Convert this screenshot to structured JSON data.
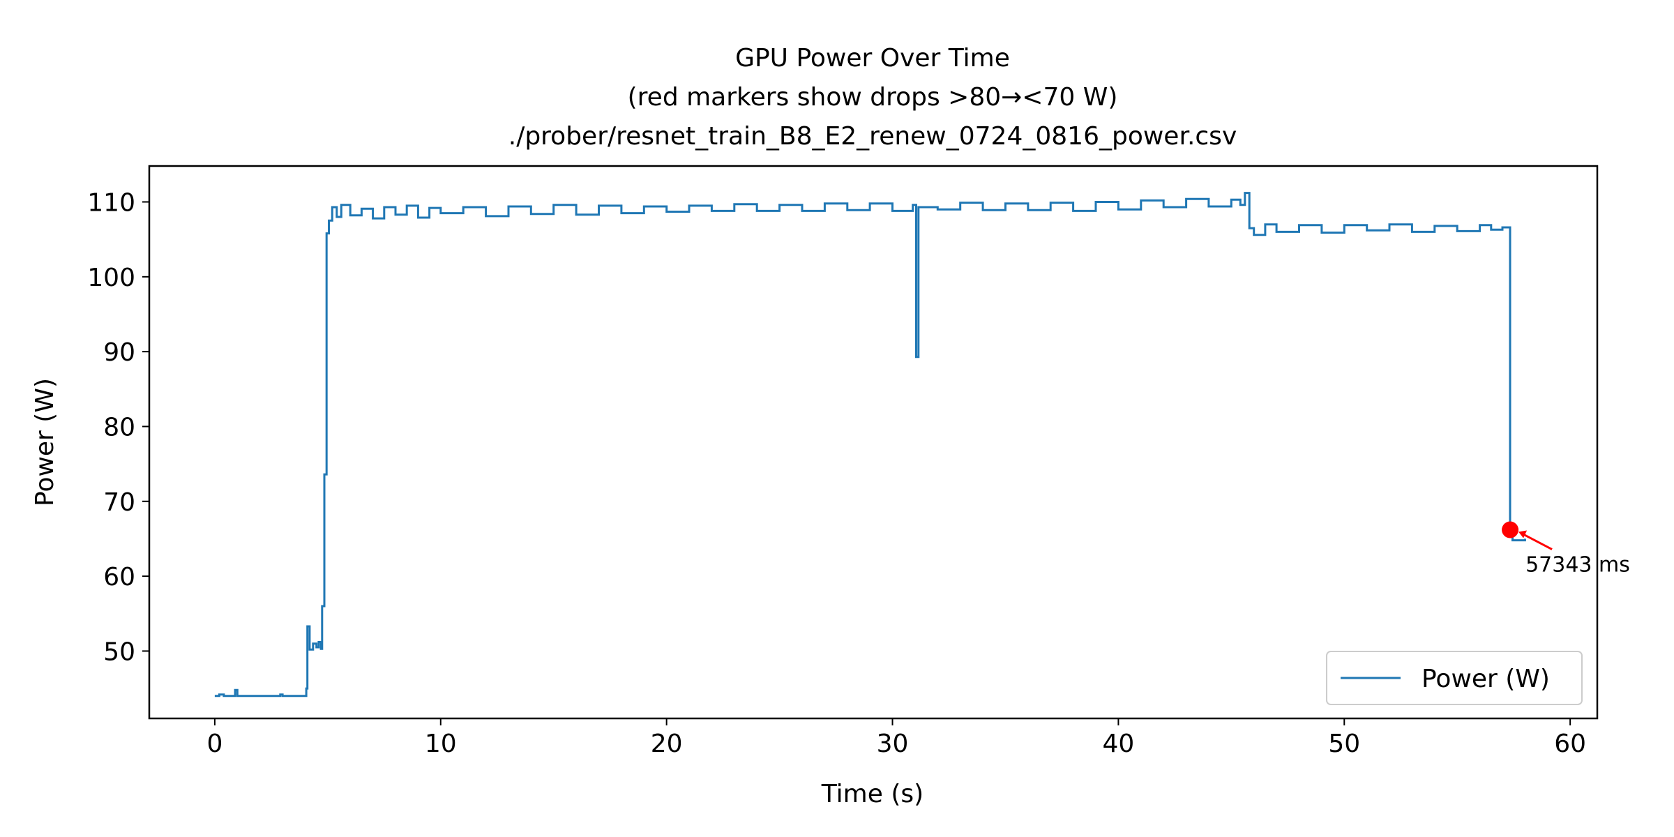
{
  "chart_data": {
    "type": "line",
    "title_lines": [
      "GPU Power Over Time",
      "(red markers show drops >80→<70 W)",
      "./prober/resnet_train_B8_E2_renew_0724_0816_power.csv"
    ],
    "xlabel": "Time (s)",
    "ylabel": "Power (W)",
    "xlim": [
      -2.9,
      61.2
    ],
    "ylim": [
      41.0,
      114.8
    ],
    "xticks": [
      0,
      10,
      20,
      30,
      40,
      50,
      60
    ],
    "yticks": [
      50,
      60,
      70,
      80,
      90,
      100,
      110
    ],
    "grid": false,
    "legend": {
      "position": "lower-right",
      "entries": [
        "Power (W)"
      ]
    },
    "colors": {
      "series": "#1f77b4",
      "marker": "#ff0000"
    },
    "series": [
      {
        "name": "Power (W)",
        "style": "step",
        "points": [
          [
            0.0,
            44.0
          ],
          [
            0.2,
            44.2
          ],
          [
            0.4,
            44.0
          ],
          [
            0.9,
            44.8
          ],
          [
            1.0,
            44.0
          ],
          [
            2.0,
            44.0
          ],
          [
            2.9,
            44.2
          ],
          [
            3.0,
            44.0
          ],
          [
            4.0,
            44.0
          ],
          [
            4.05,
            45.0
          ],
          [
            4.1,
            53.3
          ],
          [
            4.2,
            50.2
          ],
          [
            4.35,
            51.0
          ],
          [
            4.5,
            50.5
          ],
          [
            4.6,
            51.2
          ],
          [
            4.7,
            50.3
          ],
          [
            4.75,
            56.0
          ],
          [
            4.85,
            73.6
          ],
          [
            4.95,
            105.8
          ],
          [
            5.05,
            107.5
          ],
          [
            5.2,
            109.3
          ],
          [
            5.4,
            108.0
          ],
          [
            5.6,
            109.6
          ],
          [
            6.0,
            108.2
          ],
          [
            6.5,
            109.1
          ],
          [
            7.0,
            107.8
          ],
          [
            7.5,
            109.3
          ],
          [
            8.0,
            108.3
          ],
          [
            8.5,
            109.5
          ],
          [
            9.0,
            107.9
          ],
          [
            9.5,
            109.2
          ],
          [
            10.0,
            108.5
          ],
          [
            11.0,
            109.3
          ],
          [
            12.0,
            108.1
          ],
          [
            13.0,
            109.4
          ],
          [
            14.0,
            108.4
          ],
          [
            15.0,
            109.6
          ],
          [
            16.0,
            108.3
          ],
          [
            17.0,
            109.5
          ],
          [
            18.0,
            108.5
          ],
          [
            19.0,
            109.4
          ],
          [
            20.0,
            108.7
          ],
          [
            21.0,
            109.5
          ],
          [
            22.0,
            108.8
          ],
          [
            23.0,
            109.7
          ],
          [
            24.0,
            108.8
          ],
          [
            25.0,
            109.6
          ],
          [
            26.0,
            108.8
          ],
          [
            27.0,
            109.8
          ],
          [
            28.0,
            108.9
          ],
          [
            29.0,
            109.8
          ],
          [
            30.0,
            108.8
          ],
          [
            30.9,
            109.6
          ],
          [
            31.05,
            89.3
          ],
          [
            31.15,
            109.3
          ],
          [
            32.0,
            109.0
          ],
          [
            33.0,
            109.9
          ],
          [
            34.0,
            108.9
          ],
          [
            35.0,
            109.8
          ],
          [
            36.0,
            108.9
          ],
          [
            37.0,
            109.9
          ],
          [
            38.0,
            108.8
          ],
          [
            39.0,
            110.0
          ],
          [
            40.0,
            109.0
          ],
          [
            41.0,
            110.2
          ],
          [
            42.0,
            109.3
          ],
          [
            43.0,
            110.4
          ],
          [
            44.0,
            109.4
          ],
          [
            45.0,
            110.3
          ],
          [
            45.4,
            109.6
          ],
          [
            45.6,
            111.2
          ],
          [
            45.8,
            106.5
          ],
          [
            46.0,
            105.6
          ],
          [
            46.5,
            107.0
          ],
          [
            47.0,
            106.0
          ],
          [
            48.0,
            106.9
          ],
          [
            49.0,
            105.9
          ],
          [
            50.0,
            106.9
          ],
          [
            51.0,
            106.2
          ],
          [
            52.0,
            107.0
          ],
          [
            53.0,
            106.0
          ],
          [
            54.0,
            106.8
          ],
          [
            55.0,
            106.1
          ],
          [
            56.0,
            106.9
          ],
          [
            56.5,
            106.3
          ],
          [
            57.0,
            106.6
          ],
          [
            57.34,
            66.2
          ],
          [
            57.45,
            64.8
          ],
          [
            58.0,
            65.0
          ]
        ]
      }
    ],
    "markers": [
      {
        "x": 57.343,
        "y": 66.2,
        "label": "57343 ms"
      }
    ]
  }
}
